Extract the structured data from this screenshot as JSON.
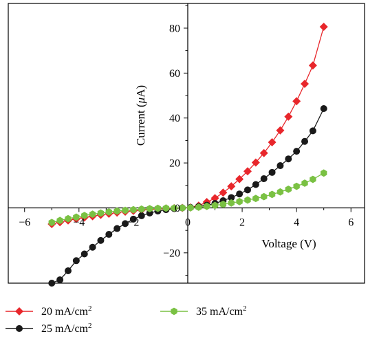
{
  "chart_data": {
    "type": "line",
    "xlabel": "Voltage (V)",
    "ylabel_prefix": "Current (",
    "ylabel_mu": "μ",
    "ylabel_suffix": "A)",
    "xlim": [
      -6.6,
      6.5
    ],
    "ylim": [
      -33.5,
      91
    ],
    "x_ticks": [
      -6,
      -4,
      -2,
      0,
      2,
      4,
      6
    ],
    "x_tick_labels": [
      "−6",
      "−4",
      "−2",
      "0",
      "2",
      "4",
      "6"
    ],
    "y_ticks": [
      -20,
      0,
      20,
      40,
      60,
      80
    ],
    "y_tick_labels": [
      "−20",
      "0",
      "20",
      "40",
      "60",
      "80"
    ],
    "legend_position": "bottom",
    "series": [
      {
        "name_main": "20 mA/cm",
        "name_sup": "2",
        "color": "#e8262b",
        "marker": "diamond",
        "x": [
          -5.0,
          -4.7,
          -4.4,
          -4.1,
          -3.8,
          -3.5,
          -3.2,
          -2.9,
          -2.6,
          -2.3,
          -2.0,
          -1.7,
          -1.4,
          -1.1,
          -0.8,
          -0.5,
          -0.2,
          0.1,
          0.4,
          0.7,
          1.0,
          1.3,
          1.6,
          1.9,
          2.2,
          2.5,
          2.8,
          3.1,
          3.4,
          3.7,
          4.0,
          4.3,
          4.6,
          5.0
        ],
        "y": [
          -7.2,
          -6.4,
          -5.6,
          -4.9,
          -4.3,
          -3.7,
          -3.1,
          -2.6,
          -2.1,
          -1.7,
          -1.3,
          -1.0,
          -0.7,
          -0.4,
          -0.25,
          -0.1,
          0.0,
          0.2,
          1.0,
          2.6,
          4.3,
          6.8,
          9.6,
          12.8,
          16.3,
          20.2,
          24.4,
          29.2,
          34.5,
          40.6,
          47.5,
          55.2,
          63.4,
          80.6
        ]
      },
      {
        "name_main": "25 mA/cm",
        "name_sup": "2",
        "color": "#1a1a1a",
        "marker": "circle",
        "x": [
          -5.0,
          -4.7,
          -4.4,
          -4.1,
          -3.8,
          -3.5,
          -3.2,
          -2.9,
          -2.6,
          -2.3,
          -2.0,
          -1.7,
          -1.4,
          -1.1,
          -0.8,
          -0.5,
          -0.2,
          0.1,
          0.4,
          0.7,
          1.0,
          1.3,
          1.6,
          1.9,
          2.2,
          2.5,
          2.8,
          3.1,
          3.4,
          3.7,
          4.0,
          4.3,
          4.6,
          5.0
        ],
        "y": [
          -33.5,
          -32.0,
          -28.0,
          -23.5,
          -20.5,
          -17.5,
          -14.5,
          -11.8,
          -9.2,
          -7.0,
          -5.0,
          -3.5,
          -2.3,
          -1.4,
          -0.8,
          -0.3,
          0.0,
          0.2,
          0.6,
          1.2,
          2.0,
          3.2,
          4.6,
          6.2,
          8.0,
          10.4,
          13.0,
          15.8,
          18.8,
          21.8,
          25.2,
          29.6,
          34.3,
          44.2
        ]
      },
      {
        "name_main": "35 mA/cm",
        "name_sup": "2",
        "color": "#7ac143",
        "marker": "hexagon",
        "x": [
          -5.0,
          -4.7,
          -4.4,
          -4.1,
          -3.8,
          -3.5,
          -3.2,
          -2.9,
          -2.6,
          -2.3,
          -2.0,
          -1.7,
          -1.4,
          -1.1,
          -0.8,
          -0.5,
          -0.2,
          0.1,
          0.4,
          0.7,
          1.0,
          1.3,
          1.6,
          1.9,
          2.2,
          2.5,
          2.8,
          3.1,
          3.4,
          3.7,
          4.0,
          4.3,
          4.6,
          5.0
        ],
        "y": [
          -6.5,
          -5.6,
          -4.8,
          -4.1,
          -3.4,
          -2.8,
          -2.3,
          -1.8,
          -1.4,
          -1.1,
          -0.8,
          -0.55,
          -0.35,
          -0.2,
          -0.1,
          -0.05,
          0.0,
          0.05,
          0.3,
          0.7,
          1.1,
          1.6,
          2.2,
          2.8,
          3.5,
          4.2,
          5.0,
          6.0,
          7.1,
          8.3,
          9.6,
          11.0,
          12.7,
          15.5
        ]
      }
    ]
  }
}
